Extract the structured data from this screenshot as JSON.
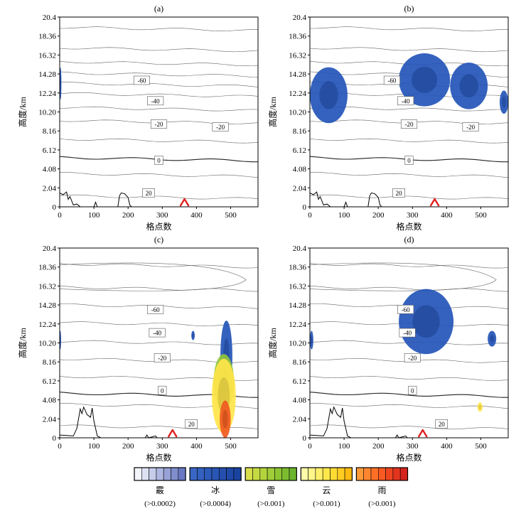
{
  "chart_data": [
    {
      "type": "contour",
      "title": "(a)",
      "xlabel": "格点数",
      "ylabel": "高度/km",
      "xlim": [
        0,
        580
      ],
      "ylim": [
        0,
        20.4
      ],
      "x_ticks": [
        0,
        100,
        200,
        300,
        400,
        500
      ],
      "y_ticks": [
        "0",
        "2.04",
        "4.08",
        "6.12",
        "8.16",
        "10.20",
        "12.24",
        "14.28",
        "16.32",
        "18.36",
        "20.4"
      ],
      "contour_labels": [
        {
          "text": "-60",
          "x": 240,
          "y": 13.6
        },
        {
          "text": "-40",
          "x": 280,
          "y": 11.4
        },
        {
          "text": "-20",
          "x": 290,
          "y": 8.9
        },
        {
          "text": "-20",
          "x": 470,
          "y": 8.6
        },
        {
          "text": "0",
          "x": 290,
          "y": 5.0
        },
        {
          "text": "20",
          "x": 260,
          "y": 1.5
        }
      ],
      "hydrometeors": [
        {
          "type": "冰",
          "x": [
            0,
            5
          ],
          "y": [
            11.5,
            15.0
          ]
        }
      ],
      "marker": {
        "shape": "triangle",
        "x": 365
      },
      "terrain": [
        [
          0,
          1.5
        ],
        [
          10,
          1.3
        ],
        [
          20,
          1.6
        ],
        [
          25,
          0.8
        ],
        [
          30,
          1.1
        ],
        [
          40,
          0.2
        ],
        [
          50,
          0.3
        ],
        [
          60,
          0
        ],
        [
          100,
          0
        ],
        [
          105,
          0.5
        ],
        [
          110,
          0
        ],
        [
          170,
          0
        ],
        [
          175,
          1.2
        ],
        [
          180,
          1.5
        ],
        [
          190,
          1.4
        ],
        [
          200,
          1.0
        ],
        [
          205,
          0.2
        ],
        [
          210,
          0
        ]
      ]
    },
    {
      "type": "contour",
      "title": "(b)",
      "xlabel": "格点数",
      "ylabel": "高度/km",
      "xlim": [
        0,
        580
      ],
      "ylim": [
        0,
        20.4
      ],
      "x_ticks": [
        0,
        100,
        200,
        300,
        400,
        500
      ],
      "y_ticks": [
        "0",
        "2.04",
        "4.08",
        "6.12",
        "8.16",
        "10.20",
        "12.24",
        "14.28",
        "16.32",
        "18.36",
        "20.4"
      ],
      "contour_labels": [
        {
          "text": "-60",
          "x": 240,
          "y": 13.6
        },
        {
          "text": "-40",
          "x": 280,
          "y": 11.4
        },
        {
          "text": "-20",
          "x": 290,
          "y": 8.9
        },
        {
          "text": "-20",
          "x": 470,
          "y": 8.6
        },
        {
          "text": "0",
          "x": 290,
          "y": 5.0
        },
        {
          "text": "20",
          "x": 260,
          "y": 1.5
        }
      ],
      "hydrometeors": [
        {
          "type": "冰",
          "x": [
            0,
            110
          ],
          "y": [
            9.0,
            15.0
          ]
        },
        {
          "type": "冰",
          "x": [
            260,
            410
          ],
          "y": [
            10.8,
            16.5
          ]
        },
        {
          "type": "冰",
          "x": [
            410,
            520
          ],
          "y": [
            10.5,
            15.5
          ]
        },
        {
          "type": "冰",
          "x": [
            555,
            580
          ],
          "y": [
            10.0,
            12.5
          ]
        }
      ],
      "marker": {
        "shape": "triangle",
        "x": 365
      },
      "terrain": [
        [
          0,
          1.5
        ],
        [
          10,
          1.3
        ],
        [
          20,
          1.6
        ],
        [
          25,
          0.8
        ],
        [
          30,
          1.1
        ],
        [
          40,
          0.2
        ],
        [
          50,
          0.3
        ],
        [
          60,
          0
        ],
        [
          100,
          0
        ],
        [
          105,
          0.5
        ],
        [
          110,
          0
        ],
        [
          170,
          0
        ],
        [
          175,
          1.2
        ],
        [
          180,
          1.5
        ],
        [
          190,
          1.4
        ],
        [
          200,
          1.0
        ],
        [
          205,
          0.2
        ],
        [
          210,
          0
        ]
      ]
    },
    {
      "type": "contour",
      "title": "(c)",
      "xlabel": "格点数",
      "ylabel": "高度/km",
      "xlim": [
        0,
        580
      ],
      "ylim": [
        0,
        20.4
      ],
      "x_ticks": [
        0,
        100,
        200,
        300,
        400,
        500
      ],
      "y_ticks": [
        "0",
        "2.04",
        "4.08",
        "6.12",
        "8.16",
        "10.20",
        "12.24",
        "14.28",
        "16.32",
        "18.36",
        "20.4"
      ],
      "contour_labels": [
        {
          "text": "-60",
          "x": 280,
          "y": 13.8
        },
        {
          "text": "-40",
          "x": 285,
          "y": 11.3
        },
        {
          "text": "-20",
          "x": 300,
          "y": 8.6
        },
        {
          "text": "0",
          "x": 300,
          "y": 5.1
        },
        {
          "text": "20",
          "x": 385,
          "y": 1.5
        }
      ],
      "hydrometeors": [
        {
          "type": "冰",
          "x": [
            0,
            4
          ],
          "y": [
            9.5,
            11.5
          ]
        },
        {
          "type": "冰",
          "x": [
            385,
            395
          ],
          "y": [
            10.5,
            11.5
          ]
        },
        {
          "type": "冰",
          "x": [
            470,
            505
          ],
          "y": [
            5.0,
            12.6
          ]
        },
        {
          "type": "雪",
          "x": [
            450,
            510
          ],
          "y": [
            3.0,
            9.0
          ]
        },
        {
          "type": "云",
          "x": [
            445,
            515
          ],
          "y": [
            0.5,
            8.5
          ]
        },
        {
          "type": "雨",
          "x": [
            468,
            500
          ],
          "y": [
            0,
            4.0
          ]
        }
      ],
      "marker": {
        "shape": "triangle",
        "x": 330
      },
      "terrain": [
        [
          0,
          0.3
        ],
        [
          40,
          0.2
        ],
        [
          50,
          1.0
        ],
        [
          60,
          3.1
        ],
        [
          65,
          2.6
        ],
        [
          70,
          3.3
        ],
        [
          80,
          2.5
        ],
        [
          90,
          2.2
        ],
        [
          95,
          3.2
        ],
        [
          100,
          1.8
        ],
        [
          110,
          0.2
        ],
        [
          120,
          0
        ],
        [
          250,
          0
        ],
        [
          255,
          0.3
        ],
        [
          260,
          0
        ],
        [
          280,
          0.2
        ],
        [
          285,
          0
        ]
      ]
    },
    {
      "type": "contour",
      "title": "(d)",
      "xlabel": "格点数",
      "ylabel": "高度/km",
      "xlim": [
        0,
        580
      ],
      "ylim": [
        0,
        20.4
      ],
      "x_ticks": [
        0,
        100,
        200,
        300,
        400,
        500
      ],
      "y_ticks": [
        "0",
        "2.04",
        "4.08",
        "6.12",
        "8.16",
        "10.20",
        "12.24",
        "14.28",
        "16.32",
        "18.36",
        "20.4"
      ],
      "contour_labels": [
        {
          "text": "-60",
          "x": 280,
          "y": 13.8
        },
        {
          "text": "-40",
          "x": 285,
          "y": 11.3
        },
        {
          "text": "-20",
          "x": 300,
          "y": 8.6
        },
        {
          "text": "0",
          "x": 300,
          "y": 5.1
        },
        {
          "text": "20",
          "x": 385,
          "y": 1.5
        }
      ],
      "hydrometeors": [
        {
          "type": "冰",
          "x": [
            0,
            10
          ],
          "y": [
            9.5,
            11.5
          ]
        },
        {
          "type": "冰",
          "x": [
            260,
            420
          ],
          "y": [
            9.0,
            16.0
          ]
        },
        {
          "type": "冰",
          "x": [
            520,
            545
          ],
          "y": [
            9.8,
            11.5
          ]
        },
        {
          "type": "云",
          "x": [
            490,
            505
          ],
          "y": [
            2.8,
            3.8
          ]
        }
      ],
      "marker": {
        "shape": "triangle",
        "x": 330
      },
      "terrain": [
        [
          0,
          0.3
        ],
        [
          40,
          0.2
        ],
        [
          50,
          1.0
        ],
        [
          60,
          3.1
        ],
        [
          65,
          2.6
        ],
        [
          70,
          3.3
        ],
        [
          80,
          2.5
        ],
        [
          90,
          2.2
        ],
        [
          95,
          3.2
        ],
        [
          100,
          1.8
        ],
        [
          110,
          0.2
        ],
        [
          120,
          0
        ],
        [
          250,
          0
        ],
        [
          255,
          0.3
        ],
        [
          260,
          0
        ],
        [
          280,
          0.2
        ],
        [
          285,
          0
        ]
      ]
    }
  ],
  "legend": [
    {
      "name": "霰",
      "threshold": "(>0.0002)",
      "colors": [
        "#f2f4fb",
        "#dde2f3",
        "#c6cdea",
        "#aeb7e0",
        "#97a2d6",
        "#808dcc",
        "#6978c2"
      ]
    },
    {
      "name": "冰",
      "threshold": "(>0.0004)",
      "colors": [
        "#3a66c4",
        "#3461bf",
        "#2e5bba",
        "#2955b4",
        "#244fae",
        "#1f49a7",
        "#1a43a0"
      ]
    },
    {
      "name": "雪",
      "threshold": "(>0.001)",
      "colors": [
        "#d8df4a",
        "#c6da43",
        "#b3d43d",
        "#a0cd38",
        "#8ec533",
        "#7cbd30",
        "#6bb42d"
      ]
    },
    {
      "name": "云",
      "threshold": "(>0.001)",
      "colors": [
        "#fff9a8",
        "#fff58a",
        "#ffef6a",
        "#ffe84c",
        "#ffdc33",
        "#ffcc22",
        "#ffbb11"
      ]
    },
    {
      "name": "雨",
      "threshold": "(>0.001)",
      "colors": [
        "#ff9a3a",
        "#ff852f",
        "#ff7026",
        "#f85a22",
        "#ef4620",
        "#e3341e",
        "#d6241c"
      ]
    }
  ],
  "colors": {
    "ice": "#2455b8",
    "snow": "#8fc63a",
    "cloud": "#ffe54a",
    "rain": "#f05a22",
    "marker": "#e02020"
  }
}
